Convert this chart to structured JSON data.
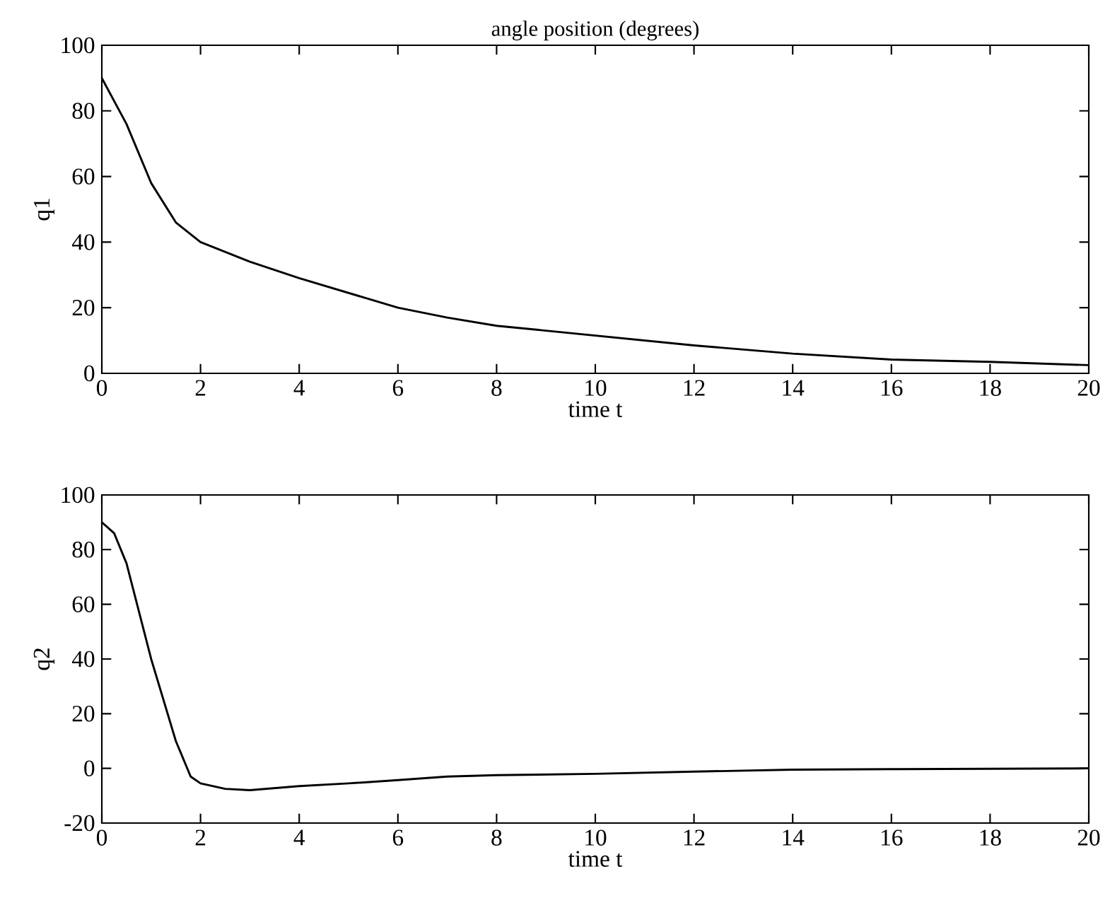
{
  "chart_data": [
    {
      "type": "line",
      "title": "angle position (degrees)",
      "xlabel": "time t",
      "ylabel": "q1",
      "color": "#000000",
      "x": [
        0,
        0.5,
        1,
        1.5,
        2,
        3,
        4,
        5,
        6,
        7,
        8,
        10,
        12,
        14,
        16,
        18,
        20
      ],
      "values": [
        90,
        76,
        58,
        46,
        40,
        34,
        29,
        24.5,
        20,
        17,
        14.5,
        11.5,
        8.5,
        6,
        4.2,
        3.5,
        2.5
      ],
      "xlim": [
        0,
        20
      ],
      "ylim": [
        0,
        100
      ],
      "xticks": [
        0,
        2,
        4,
        6,
        8,
        10,
        12,
        14,
        16,
        18,
        20
      ],
      "yticks": [
        0,
        20,
        40,
        60,
        80,
        100
      ]
    },
    {
      "type": "line",
      "xlabel": "time t",
      "ylabel": "q2",
      "color": "#000000",
      "x": [
        0,
        0.25,
        0.5,
        1,
        1.5,
        1.8,
        2,
        2.5,
        3,
        4,
        5,
        6,
        7,
        8,
        10,
        12,
        14,
        16,
        20
      ],
      "values": [
        90,
        86,
        75,
        40,
        10,
        -3,
        -5.5,
        -7.5,
        -8,
        -6.5,
        -5.5,
        -4.3,
        -3,
        -2.5,
        -2,
        -1.2,
        -0.5,
        -0.3,
        0
      ],
      "xlim": [
        0,
        20
      ],
      "ylim": [
        -20,
        100
      ],
      "xticks": [
        0,
        2,
        4,
        6,
        8,
        10,
        12,
        14,
        16,
        18,
        20
      ],
      "yticks": [
        -20,
        0,
        20,
        40,
        60,
        80,
        100
      ]
    }
  ]
}
